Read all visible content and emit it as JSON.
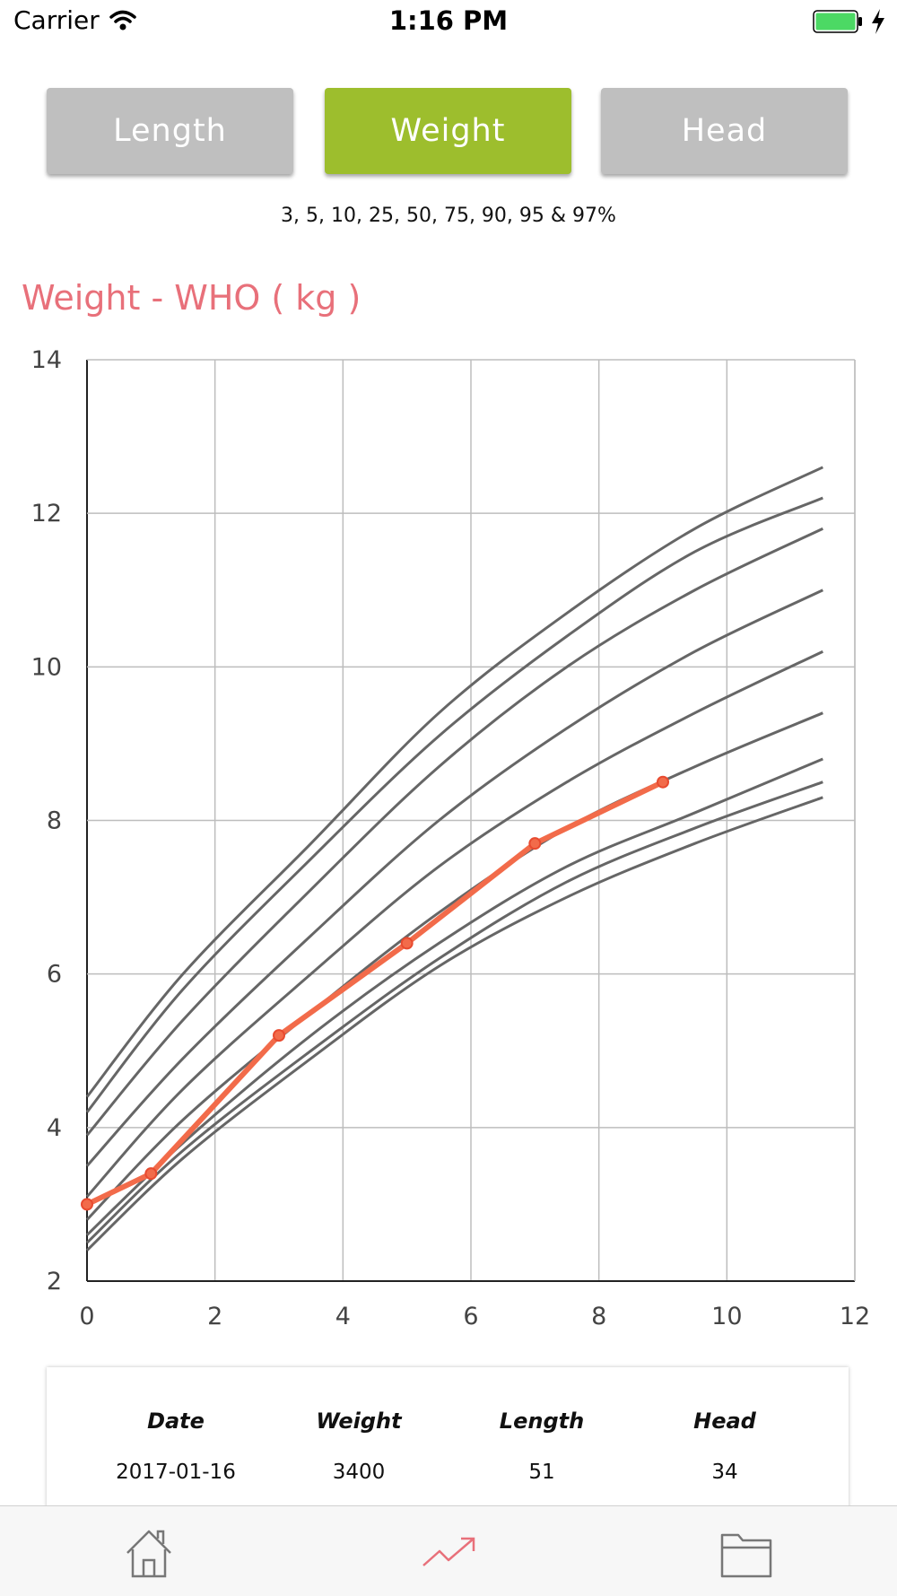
{
  "status_bar": {
    "carrier": "Carrier",
    "time": "1:16 PM"
  },
  "segments": [
    {
      "label": "Length",
      "active": false
    },
    {
      "label": "Weight",
      "active": true
    },
    {
      "label": "Head",
      "active": false
    }
  ],
  "percentiles_text": "3, 5, 10, 25, 50, 75, 90, 95 & 97%",
  "chart_title": "Weight - WHO ( kg )",
  "colors": {
    "active": "#9dbe2d",
    "inactive": "#bfbfbf",
    "title": "#e8707a",
    "series": "#f26b4a",
    "percentile_line": "#666666"
  },
  "chart_data": {
    "type": "line",
    "title": "Weight - WHO ( kg )",
    "xlim": [
      0,
      12
    ],
    "ylim": [
      2,
      14
    ],
    "xticks": [
      0,
      2,
      4,
      6,
      8,
      10,
      12
    ],
    "yticks": [
      2,
      4,
      6,
      8,
      10,
      12,
      14
    ],
    "grid": true,
    "reference_x": [
      0,
      1.5,
      3.5,
      5.5,
      7.5,
      9.5,
      11.5
    ],
    "reference_curves": [
      {
        "name": "3",
        "values": [
          2.4,
          3.6,
          4.9,
          6.1,
          7.0,
          7.7,
          8.3
        ]
      },
      {
        "name": "5",
        "values": [
          2.5,
          3.7,
          5.0,
          6.2,
          7.2,
          7.9,
          8.5
        ]
      },
      {
        "name": "10",
        "values": [
          2.6,
          3.8,
          5.2,
          6.4,
          7.4,
          8.1,
          8.8
        ]
      },
      {
        "name": "25",
        "values": [
          2.8,
          4.1,
          5.5,
          6.8,
          7.9,
          8.7,
          9.4
        ]
      },
      {
        "name": "50",
        "values": [
          3.1,
          4.5,
          6.0,
          7.4,
          8.5,
          9.4,
          10.2
        ]
      },
      {
        "name": "75",
        "values": [
          3.5,
          4.9,
          6.5,
          8.0,
          9.2,
          10.2,
          11.0
        ]
      },
      {
        "name": "90",
        "values": [
          3.9,
          5.4,
          7.1,
          8.7,
          10.0,
          11.0,
          11.8
        ]
      },
      {
        "name": "95",
        "values": [
          4.2,
          5.8,
          7.5,
          9.1,
          10.4,
          11.5,
          12.2
        ]
      },
      {
        "name": "97",
        "values": [
          4.4,
          6.0,
          7.7,
          9.4,
          10.7,
          11.8,
          12.6
        ]
      }
    ],
    "series": [
      {
        "x": [
          0,
          1,
          3,
          5,
          7,
          9
        ],
        "values": [
          3.0,
          3.4,
          5.2,
          6.4,
          7.7,
          8.5
        ]
      }
    ]
  },
  "table": {
    "headers": [
      "Date",
      "Weight",
      "Length",
      "Head"
    ],
    "rows": [
      [
        "2017-01-16",
        "3400",
        "51",
        "34"
      ]
    ]
  },
  "tabbar": {
    "icons": [
      "home-icon",
      "chart-trend-icon",
      "folder-icon"
    ]
  }
}
